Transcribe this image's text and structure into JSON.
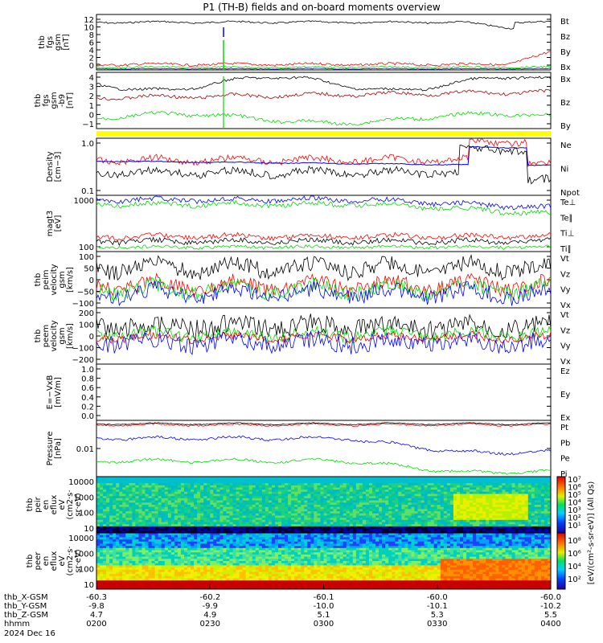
{
  "title": "P1 (TH-B) fields and on-board moments overview",
  "colors": {
    "black": "#000000",
    "red": "#ff0000",
    "green": "#00dd00",
    "blue": "#0000ff",
    "yellow": "#ffff00",
    "darkred": "#aa0000"
  },
  "panels": [
    {
      "id": "fgs",
      "label": [
        "thb",
        "fgs",
        "gsm",
        "[nT]"
      ],
      "ylim": [
        0,
        13
      ],
      "yticks": [
        "12",
        "10",
        "8",
        "6",
        "4",
        "2",
        "0"
      ],
      "legend": [
        {
          "text": "Bt",
          "color": "black"
        },
        {
          "text": "Bz",
          "color": "red"
        },
        {
          "text": "By",
          "color": "green"
        },
        {
          "text": "Bx",
          "color": "blue"
        }
      ]
    },
    {
      "id": "fgs_angle",
      "label": [
        "thb",
        "fgs",
        "gsm",
        "-b9",
        "[nT]"
      ],
      "ylim": [
        -1.5,
        4.5
      ],
      "yticks": [
        "4",
        "3",
        "2",
        "1",
        "0",
        "−1"
      ],
      "legend": [
        {
          "text": "Bx",
          "color": "black"
        },
        {
          "text": "Bz",
          "color": "darkred"
        },
        {
          "text": "By",
          "color": "green"
        }
      ]
    },
    {
      "id": "density",
      "label": [
        "Density",
        "[cm−3]"
      ],
      "yscale": "log",
      "yticks": [
        "1.0",
        "0.1"
      ],
      "legend": [
        {
          "text": "Ne",
          "color": "red"
        },
        {
          "text": "Ni",
          "color": "black"
        },
        {
          "text": "Npot",
          "color": "blue"
        }
      ]
    },
    {
      "id": "temp",
      "label": [
        "magt3",
        "[eV]"
      ],
      "yscale": "log",
      "yticks": [
        "1000",
        "100"
      ],
      "legend": [
        {
          "text": "Te⊥",
          "color": "red"
        },
        {
          "text": "Te∥",
          "color": "black"
        },
        {
          "text": "Ti⊥",
          "color": "red"
        },
        {
          "text": "Ti∥",
          "color": "green"
        }
      ]
    },
    {
      "id": "peim",
      "label": [
        "thb",
        "peim",
        "velocity",
        "gsm",
        "[km/s]"
      ],
      "ylim": [
        -130,
        150
      ],
      "yticks": [
        "100",
        "50",
        "0",
        "−50",
        "−100"
      ],
      "legend": [
        {
          "text": "Vt",
          "color": "black"
        },
        {
          "text": "Vz",
          "color": "red"
        },
        {
          "text": "Vy",
          "color": "green"
        },
        {
          "text": "Vx",
          "color": "blue"
        }
      ]
    },
    {
      "id": "peem",
      "label": [
        "thb",
        "peem",
        "velocity",
        "gsm",
        "[km/s]"
      ],
      "ylim": [
        -230,
        230
      ],
      "yticks": [
        "200",
        "100",
        "0",
        "−100",
        "−200"
      ],
      "legend": [
        {
          "text": "Vt",
          "color": "black"
        },
        {
          "text": "Vz",
          "color": "red"
        },
        {
          "text": "Vy",
          "color": "green"
        },
        {
          "text": "Vx",
          "color": "blue"
        }
      ]
    },
    {
      "id": "efield",
      "label": [
        "E=−VxB",
        "[mV/m]"
      ],
      "ylim": [
        -0.1,
        1.0
      ],
      "yticks": [
        "1.0",
        "0.8",
        "0.6",
        "0.4",
        "0.2",
        "0.0"
      ],
      "legend": [
        {
          "text": "Ez",
          "color": "red"
        },
        {
          "text": "Ey",
          "color": "green"
        },
        {
          "text": "Ex",
          "color": "blue"
        }
      ]
    },
    {
      "id": "pressure",
      "label": [
        "Pressure",
        "[nPa]"
      ],
      "yscale": "log",
      "yticks": [
        "0.01"
      ],
      "legend": [
        {
          "text": "Pt",
          "color": "black"
        },
        {
          "text": "Pb",
          "color": "red"
        },
        {
          "text": "Pe",
          "color": "green"
        },
        {
          "text": "Pi",
          "color": "blue"
        }
      ]
    },
    {
      "id": "peir",
      "label": [
        "thb",
        "peir",
        "en",
        "eflux",
        "eV",
        "(cm2·s·",
        "sr·eV)"
      ],
      "yscale": "log",
      "yticks": [
        "10000",
        "1000",
        "100",
        "10"
      ]
    },
    {
      "id": "peer",
      "label": [
        "thb",
        "peer",
        "en",
        "eflux",
        "eV",
        "(cm2·s·",
        "sr·eV)"
      ],
      "yscale": "log",
      "yticks": [
        "10000",
        "1000",
        "100",
        "10"
      ]
    }
  ],
  "colorbar": {
    "label": "[eV/(cm²-s-sr-eV)] (All Qs)",
    "ticks_top": [
      "10⁷",
      "10⁶",
      "10⁵",
      "10⁴",
      "10³",
      "10²",
      "10¹"
    ],
    "ticks_bottom": [
      "10⁸",
      "10⁶",
      "10⁴",
      "10²"
    ]
  },
  "xaxis": {
    "row_labels": [
      "thb_X-GSM",
      "thb_Y-GSM",
      "thb_Z-GSM",
      "hhmm",
      "2024 Dec 16"
    ],
    "columns": [
      {
        "x": "-60.3",
        "y": "-9.8",
        "z": "4.7",
        "time": "0200"
      },
      {
        "x": "-60.2",
        "y": "-9.9",
        "z": "4.9",
        "time": "0230"
      },
      {
        "x": "-60.1",
        "y": "-10.0",
        "z": "5.1",
        "time": "0300"
      },
      {
        "x": "-60.0",
        "y": "-10.1",
        "z": "5.3",
        "time": "0330"
      },
      {
        "x": "-60.0",
        "y": "-10.2",
        "z": "5.5",
        "time": "0400"
      }
    ]
  },
  "chart_data": {
    "type": "line",
    "title": "P1 (TH-B) fields and on-board moments overview",
    "x": [
      "0200",
      "0230",
      "0300",
      "0330",
      "0400"
    ],
    "series": [
      {
        "name": "Bt",
        "panel": "fgs",
        "values": [
          11.5,
          11.8,
          11.2,
          11.0,
          12.5
        ]
      },
      {
        "name": "Bz",
        "panel": "fgs",
        "values": [
          1.0,
          1.2,
          1.0,
          1.5,
          2.0
        ]
      },
      {
        "name": "By",
        "panel": "fgs",
        "values": [
          0.3,
          0.4,
          0.3,
          0.5,
          0.8
        ]
      },
      {
        "name": "Bx",
        "panel": "fgs",
        "values": [
          0.0,
          0.1,
          0.0,
          0.1,
          0.2
        ]
      }
    ]
  }
}
